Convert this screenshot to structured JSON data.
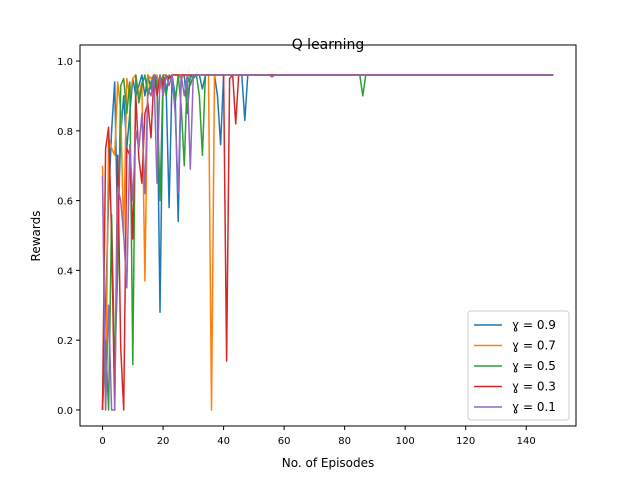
{
  "chart_data": {
    "type": "line",
    "title": "Q learning",
    "xlabel": "No. of Episodes",
    "ylabel": "Rewards",
    "xlim": [
      -7.45,
      156.45
    ],
    "ylim": [
      -0.046,
      1.046
    ],
    "x_ticks": [
      0,
      20,
      40,
      60,
      80,
      100,
      120,
      140
    ],
    "y_ticks": [
      0.0,
      0.2,
      0.4,
      0.6,
      0.8,
      1.0
    ],
    "y_tick_labels": [
      "0.0",
      "0.2",
      "0.4",
      "0.6",
      "0.8",
      "1.0"
    ],
    "grid": false,
    "legend_position": "lower-right",
    "n_episodes": 150,
    "tail_value": 0.96,
    "series": [
      {
        "name": "ɣ = 0.9",
        "color": "#1f77b4",
        "values_head": [
          0,
          0.3,
          0.6,
          0.8,
          0.94,
          0.5,
          0.79,
          0.9,
          0.75,
          0.85,
          0.95,
          0.9,
          0.93,
          0.96,
          0.9,
          0.96,
          0.92,
          0.96,
          0.95,
          0.28,
          0.96,
          0.93,
          0.58,
          0.96,
          0.9,
          0.54,
          0.96,
          0.96,
          0.85,
          0.96,
          0.95,
          0.96,
          0.96,
          0.92,
          0.96,
          0.96,
          0.96,
          0.96,
          0.9,
          0.76,
          0.96,
          0.96,
          0.96,
          0.96,
          0.96,
          0.96,
          0.96,
          0.83,
          0.96,
          0.96
        ],
        "tail_points": {}
      },
      {
        "name": "ɣ = 0.7",
        "color": "#ff7f0e",
        "values_head": [
          0.7,
          0.0,
          0.78,
          0.75,
          0.73,
          0.94,
          0.86,
          0.5,
          0.95,
          0.9,
          0.95,
          0.96,
          0.9,
          0.94,
          0.37,
          0.96,
          0.95,
          0.96,
          0.96,
          0.92,
          0.96,
          0.96,
          0.95,
          0.96,
          0.96,
          0.96,
          0.95,
          0.96,
          0.96,
          0.96,
          0.96,
          0.96,
          0.96,
          0.96,
          0.96,
          0.96,
          0.0,
          0.96,
          0.96,
          0.96,
          0.96,
          0.96,
          0.96,
          0.96,
          0.96,
          0.96,
          0.96,
          0.96,
          0.96,
          0.96
        ],
        "tail_points": {}
      },
      {
        "name": "ɣ = 0.5",
        "color": "#2ca02c",
        "values_head": [
          0,
          0.2,
          0.0,
          0.56,
          0.12,
          0.4,
          0.93,
          0.95,
          0.85,
          0.94,
          0.13,
          0.96,
          0.88,
          0.93,
          0.96,
          0.9,
          0.94,
          0.96,
          0.93,
          0.6,
          0.96,
          0.9,
          0.96,
          0.95,
          0.88,
          0.96,
          0.87,
          0.7,
          0.96,
          0.93,
          0.96,
          0.96,
          0.9,
          0.73,
          0.96,
          0.96,
          0.96,
          0.96,
          0.96,
          0.96,
          0.96,
          0.96,
          0.96,
          0.96,
          0.96,
          0.96,
          0.96,
          0.96,
          0.96,
          0.96
        ],
        "tail_points": {
          "86": 0.9
        }
      },
      {
        "name": "ɣ = 0.3",
        "color": "#d62728",
        "values_head": [
          0,
          0.75,
          0.81,
          0.5,
          0,
          0.73,
          0.18,
          0,
          0.75,
          0.73,
          0.49,
          0.9,
          0.72,
          0.65,
          0.85,
          0.88,
          0.78,
          0.96,
          0.9,
          0.96,
          0.93,
          0.96,
          0.95,
          0.96,
          0.96,
          0.96,
          0.96,
          0.96,
          0.96,
          0.96,
          0.96,
          0.96,
          0.96,
          0.96,
          0.96,
          0.96,
          0.96,
          0.96,
          0.96,
          0.96,
          0.96,
          0.14,
          0.95,
          0.96,
          0.82,
          0.96,
          0.96,
          0.96,
          0.96,
          0.96
        ],
        "tail_points": {}
      },
      {
        "name": "ɣ = 0.1",
        "color": "#9467bd",
        "values_head": [
          0.67,
          0.0,
          0.3,
          0,
          0,
          0.64,
          0.6,
          0.5,
          0.35,
          0.76,
          0.6,
          0.8,
          0.75,
          0.85,
          0.62,
          0.92,
          0.9,
          0.96,
          0.65,
          0.96,
          0.9,
          0.96,
          0.93,
          0.96,
          0.85,
          0.62,
          0.96,
          0.9,
          0.96,
          0.69,
          0.96,
          0.96,
          0.96,
          0.96,
          0.96,
          0.96,
          0.96,
          0.96,
          0.96,
          0.96,
          0.96,
          0.96,
          0.96,
          0.96,
          0.96,
          0.96,
          0.96,
          0.96,
          0.96,
          0.96
        ],
        "tail_points": {
          "56": 0.955
        }
      }
    ]
  }
}
